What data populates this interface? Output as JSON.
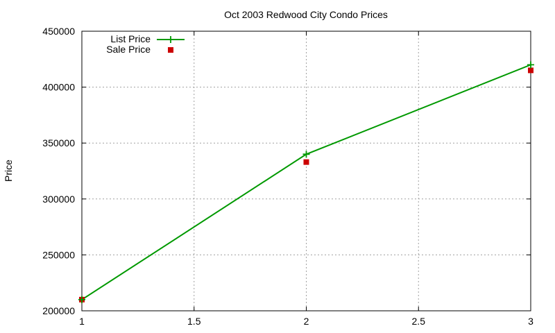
{
  "chart_data": {
    "type": "line",
    "title": "Oct 2003 Redwood City Condo Prices",
    "xlabel": "",
    "ylabel": "Price",
    "x": [
      1,
      2,
      3
    ],
    "xlim": [
      1,
      3
    ],
    "ylim": [
      200000,
      450000
    ],
    "x_ticks": [
      "1",
      "1.5",
      "2",
      "2.5",
      "3"
    ],
    "y_ticks": [
      "200000",
      "250000",
      "300000",
      "350000",
      "400000",
      "450000"
    ],
    "x_tick_values": [
      1,
      1.5,
      2,
      2.5,
      3
    ],
    "y_tick_values": [
      200000,
      250000,
      300000,
      350000,
      400000,
      450000
    ],
    "grid": true,
    "legend_position": "top-left",
    "series": [
      {
        "name": "List Price",
        "style": "line-with-plus-markers",
        "color": "#009900",
        "values": [
          210000,
          340000,
          420000
        ]
      },
      {
        "name": "Sale Price",
        "style": "square-markers",
        "color": "#cc0000",
        "values": [
          210000,
          333000,
          415000
        ]
      }
    ]
  }
}
